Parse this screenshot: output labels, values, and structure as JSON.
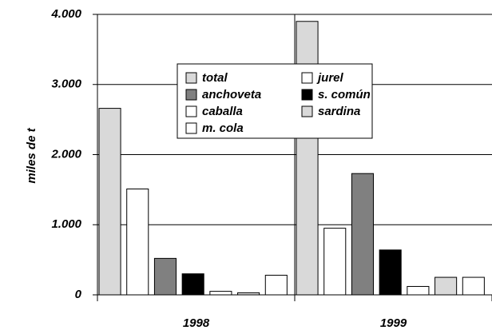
{
  "chart_data": {
    "type": "bar",
    "y_label": "miles de t",
    "categories": [
      "1998",
      "1999"
    ],
    "series": [
      {
        "name": "total",
        "color": "#d9d9d9",
        "values": [
          2660,
          3900
        ]
      },
      {
        "name": "jurel",
        "color": "#ffffff",
        "values": [
          1510,
          950
        ]
      },
      {
        "name": "anchoveta",
        "color": "#808080",
        "values": [
          520,
          1730
        ]
      },
      {
        "name": "s. común",
        "color": "#000000",
        "values": [
          300,
          640
        ]
      },
      {
        "name": "caballa",
        "color": "#ffffff",
        "values": [
          50,
          120
        ]
      },
      {
        "name": "sardina",
        "color": "#d9d9d9",
        "values": [
          30,
          250
        ]
      },
      {
        "name": "m. cola",
        "color": "#ffffff",
        "values": [
          280,
          250
        ]
      }
    ],
    "ylim": [
      0,
      4000
    ],
    "yticks": [
      {
        "value": 0,
        "label": "0"
      },
      {
        "value": 1000,
        "label": "1.000"
      },
      {
        "value": 2000,
        "label": "2.000"
      },
      {
        "value": 3000,
        "label": "3.000"
      },
      {
        "value": 4000,
        "label": "4.000"
      }
    ],
    "grid": true
  }
}
